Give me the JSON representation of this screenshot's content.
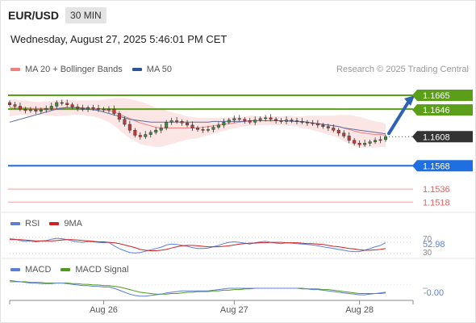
{
  "header": {
    "symbol": "EUR/USD",
    "timeframe": "30 MIN",
    "datetime": "Wednesday, August 27, 2025 5:46:01 PM CET"
  },
  "main_legend": {
    "items": [
      {
        "label": "MA 20 + Bollinger Bands",
        "color": "#f08080"
      },
      {
        "label": "MA 50",
        "color": "#2f5597"
      }
    ],
    "credit": "Research © 2025 Trading Central"
  },
  "levels": {
    "resistance_1": "1.1665",
    "resistance_2": "1.1646",
    "last_price": "1.1608",
    "pivot": "1.1568",
    "support_1": "1.1536",
    "support_2": "1.1518"
  },
  "colors": {
    "green_level": "#5a9e1a",
    "blue_level": "#1f6fe0",
    "last_price_bg": "#333333",
    "support": "#e06060",
    "bullish": "#3c8f3c",
    "bearish": "#c23b3b",
    "arrow": "#2b62b5"
  },
  "rsi": {
    "legend": [
      {
        "label": "RSI",
        "color": "#5b7fd6"
      },
      {
        "label": "9MA",
        "color": "#d02020"
      }
    ],
    "value": "52.98",
    "upper": "70",
    "lower": "30"
  },
  "macd": {
    "legend": [
      {
        "label": "MACD",
        "color": "#5b7fd6"
      },
      {
        "label": "MACD Signal",
        "color": "#4f9a1a"
      }
    ],
    "value": "-0.00"
  },
  "xaxis": {
    "labels": [
      "Aug 26",
      "Aug 27",
      "Aug 28"
    ]
  },
  "chart_data": {
    "type": "candlestick",
    "y_range": [
      1.1505,
      1.1685
    ],
    "closes": [
      1.1652,
      1.165,
      1.1646,
      1.1644,
      1.1645,
      1.1643,
      1.1645,
      1.1647,
      1.165,
      1.1655,
      1.1654,
      1.1652,
      1.1649,
      1.1647,
      1.1646,
      1.1648,
      1.1647,
      1.1646,
      1.1645,
      1.1646,
      1.164,
      1.1632,
      1.1625,
      1.1617,
      1.161,
      1.1608,
      1.1611,
      1.1614,
      1.1617,
      1.162,
      1.1628,
      1.163,
      1.1629,
      1.1627,
      1.1624,
      1.162,
      1.1618,
      1.1617,
      1.1618,
      1.1621,
      1.1624,
      1.1628,
      1.1631,
      1.1633,
      1.1632,
      1.163,
      1.1628,
      1.1631,
      1.1633,
      1.1634,
      1.1632,
      1.163,
      1.1629,
      1.1631,
      1.163,
      1.1629,
      1.1628,
      1.1627,
      1.1626,
      1.1624,
      1.1622,
      1.162,
      1.1617,
      1.1613,
      1.1609,
      1.1603,
      1.1599,
      1.1597,
      1.1599,
      1.1601,
      1.1603,
      1.1604,
      1.1608
    ],
    "ma20": [
      1.1648,
      1.1648,
      1.1648,
      1.1648,
      1.1647,
      1.1647,
      1.1647,
      1.1647,
      1.1647,
      1.1647,
      1.1648,
      1.1648,
      1.1648,
      1.1648,
      1.1648,
      1.1647,
      1.1647,
      1.1646,
      1.1645,
      1.1644,
      1.1642,
      1.1639,
      1.1636,
      1.1633,
      1.163,
      1.1627,
      1.1625,
      1.1623,
      1.1621,
      1.162,
      1.162,
      1.162,
      1.162,
      1.162,
      1.162,
      1.162,
      1.162,
      1.1621,
      1.1622,
      1.1623,
      1.1624,
      1.1625,
      1.1626,
      1.1627,
      1.1628,
      1.1629,
      1.163,
      1.163,
      1.163,
      1.163,
      1.163,
      1.163,
      1.163,
      1.163,
      1.163,
      1.1629,
      1.1628,
      1.1628,
      1.1627,
      1.1626,
      1.1625,
      1.1624,
      1.1623,
      1.1622,
      1.162,
      1.1618,
      1.1616,
      1.1614,
      1.1613,
      1.1612,
      1.1611,
      1.1611,
      1.161
    ],
    "ma50": [
      1.1628,
      1.163,
      1.1632,
      1.1634,
      1.1636,
      1.1638,
      1.164,
      1.1642,
      1.1644,
      1.1646,
      1.1647,
      1.1648,
      1.1648,
      1.1648,
      1.1647,
      1.1646,
      1.1645,
      1.1644,
      1.1642,
      1.164,
      1.1638,
      1.1636,
      1.1634,
      1.1632,
      1.1631,
      1.163,
      1.1629,
      1.1628,
      1.1628,
      1.1628,
      1.1628,
      1.1628,
      1.1628,
      1.1628,
      1.1628,
      1.1628,
      1.1628,
      1.1628,
      1.1628,
      1.1629,
      1.1629,
      1.1629,
      1.1629,
      1.1629,
      1.1629,
      1.1629,
      1.163,
      1.163,
      1.163,
      1.163,
      1.163,
      1.163,
      1.163,
      1.163,
      1.1629,
      1.1629,
      1.1629,
      1.1628,
      1.1627,
      1.1626,
      1.1625,
      1.1624,
      1.1623,
      1.1622,
      1.162,
      1.1619,
      1.1618,
      1.1617,
      1.1616,
      1.1615,
      1.1614,
      1.1613,
      1.1612
    ],
    "bb_width": [
      0.0012,
      0.0011,
      0.001,
      0.001,
      0.001,
      0.0009,
      0.0009,
      0.001,
      0.001,
      0.0011,
      0.0011,
      0.0011,
      0.001,
      0.001,
      0.001,
      0.0011,
      0.0011,
      0.0012,
      0.0014,
      0.0016,
      0.0019,
      0.0022,
      0.0025,
      0.0027,
      0.0028,
      0.0029,
      0.0029,
      0.0028,
      0.0027,
      0.0026,
      0.0024,
      0.0022,
      0.002,
      0.0018,
      0.0016,
      0.0015,
      0.0014,
      0.0013,
      0.0012,
      0.0011,
      0.001,
      0.0009,
      0.0008,
      0.0008,
      0.0007,
      0.0007,
      0.0007,
      0.0007,
      0.0006,
      0.0006,
      0.0006,
      0.0006,
      0.0006,
      0.0007,
      0.0007,
      0.0007,
      0.0008,
      0.0009,
      0.001,
      0.0011,
      0.0012,
      0.0013,
      0.0014,
      0.0016,
      0.0018,
      0.002,
      0.0021,
      0.0021,
      0.002,
      0.0019,
      0.0018,
      0.0017,
      0.0016
    ],
    "rsi_values": [
      62,
      61,
      58,
      56,
      57,
      55,
      57,
      58,
      61,
      63,
      62,
      60,
      57,
      55,
      54,
      56,
      55,
      54,
      53,
      54,
      46,
      40,
      35,
      31,
      30,
      31,
      34,
      37,
      40,
      43,
      48,
      50,
      49,
      47,
      45,
      42,
      40,
      40,
      41,
      44,
      47,
      51,
      54,
      55,
      54,
      52,
      50,
      53,
      55,
      56,
      54,
      52,
      51,
      53,
      52,
      51,
      50,
      49,
      48,
      46,
      44,
      42,
      40,
      38,
      36,
      34,
      33,
      33,
      36,
      40,
      44,
      47,
      53
    ],
    "rsi_ma": [
      60,
      60,
      60,
      59,
      58,
      57,
      57,
      57,
      57,
      58,
      59,
      60,
      60,
      59,
      58,
      57,
      56,
      55,
      55,
      54,
      53,
      51,
      48,
      45,
      42,
      38,
      36,
      35,
      35,
      36,
      38,
      41,
      44,
      46,
      47,
      47,
      46,
      45,
      44,
      44,
      44,
      45,
      46,
      48,
      50,
      51,
      52,
      52,
      53,
      53,
      54,
      54,
      54,
      53,
      53,
      53,
      52,
      51,
      51,
      50,
      49,
      47,
      45,
      44,
      42,
      40,
      39,
      37,
      36,
      36,
      37,
      38,
      40
    ],
    "macd_values": [
      0.0012,
      0.0011,
      0.001,
      0.0009,
      0.0008,
      0.0008,
      0.0007,
      0.0007,
      0.0007,
      0.0008,
      0.0008,
      0.0007,
      0.0006,
      0.0005,
      0.0004,
      0.0004,
      0.0003,
      0.0003,
      0.0002,
      0.0002,
      0.0,
      -0.0003,
      -0.0006,
      -0.0009,
      -0.0011,
      -0.0012,
      -0.0012,
      -0.0011,
      -0.001,
      -0.0009,
      -0.0007,
      -0.0006,
      -0.0005,
      -0.0004,
      -0.0004,
      -0.0004,
      -0.0004,
      -0.0004,
      -0.0004,
      -0.0003,
      -0.0002,
      -0.0001,
      0.0,
      0.0,
      0.0,
      0.0,
      0.0,
      0.0,
      0.0,
      0.0,
      0.0,
      0.0,
      0.0,
      0.0,
      0.0,
      0.0,
      -0.0001,
      -0.0001,
      -0.0002,
      -0.0002,
      -0.0003,
      -0.0004,
      -0.0005,
      -0.0006,
      -0.0007,
      -0.0008,
      -0.0009,
      -0.001,
      -0.001,
      -0.0009,
      -0.0008,
      -0.0007,
      -0.0006
    ],
    "macd_signal": [
      0.001,
      0.001,
      0.001,
      0.001,
      0.0009,
      0.0009,
      0.0009,
      0.0008,
      0.0008,
      0.0008,
      0.0008,
      0.0008,
      0.0007,
      0.0007,
      0.0006,
      0.0006,
      0.0005,
      0.0005,
      0.0004,
      0.0004,
      0.0003,
      0.0002,
      0.0,
      -0.0002,
      -0.0004,
      -0.0006,
      -0.0007,
      -0.0008,
      -0.0009,
      -0.0009,
      -0.0009,
      -0.0008,
      -0.0008,
      -0.0007,
      -0.0006,
      -0.0006,
      -0.0005,
      -0.0005,
      -0.0005,
      -0.0004,
      -0.0004,
      -0.0003,
      -0.0003,
      -0.0002,
      -0.0002,
      -0.0001,
      -0.0001,
      0.0,
      0.0,
      0.0,
      0.0,
      0.0,
      0.0,
      0.0,
      0.0,
      0.0,
      0.0,
      -0.0001,
      -0.0001,
      -0.0001,
      -0.0002,
      -0.0002,
      -0.0003,
      -0.0004,
      -0.0005,
      -0.0006,
      -0.0007,
      -0.0008,
      -0.0008,
      -0.0008,
      -0.0008,
      -0.0008,
      -0.0007
    ],
    "macd_range": [
      -0.0016,
      0.0016
    ],
    "x_label_index": [
      18,
      43,
      67
    ]
  }
}
